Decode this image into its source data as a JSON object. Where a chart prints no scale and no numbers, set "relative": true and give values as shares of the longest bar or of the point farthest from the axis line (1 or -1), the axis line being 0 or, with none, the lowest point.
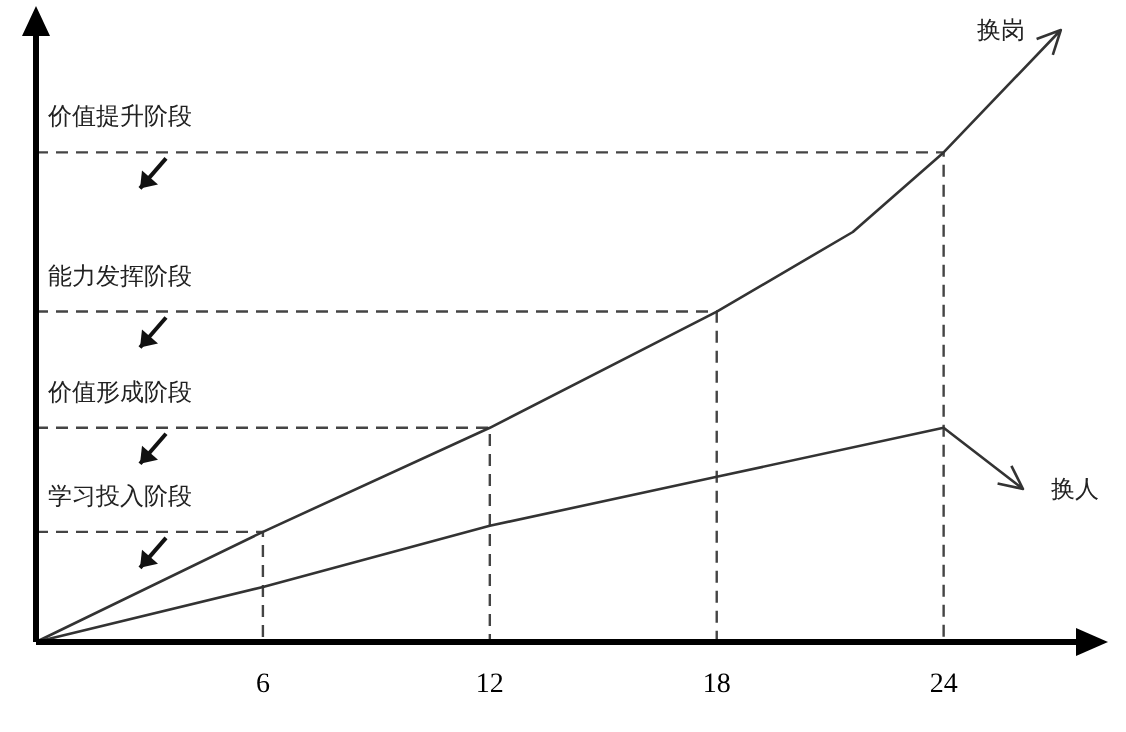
{
  "chart_data": {
    "type": "line",
    "relative": true,
    "xlim": [
      0,
      27.5
    ],
    "xticks": [
      6,
      12,
      18,
      24
    ],
    "grid": false,
    "legend": "right",
    "marker": "none",
    "line_style": "solid",
    "series": [
      {
        "name": "换岗",
        "color": "#333333",
        "x": [
          0,
          6,
          12,
          18,
          21.6,
          24,
          27.1
        ],
        "values": [
          0,
          0.18,
          0.35,
          0.54,
          0.67,
          0.8,
          1.0
        ]
      },
      {
        "name": "换人",
        "color": "#333333",
        "x": [
          0,
          6,
          12,
          18,
          24,
          26.1
        ],
        "values": [
          0,
          0.09,
          0.19,
          0.27,
          0.35,
          0.25
        ]
      }
    ],
    "annotations": [
      "学习投入阶段",
      "价值形成阶段",
      "能力发挥阶段",
      "价值提升阶段"
    ]
  }
}
